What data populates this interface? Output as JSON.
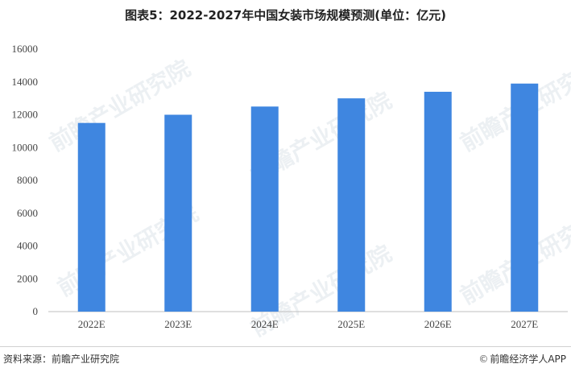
{
  "title": "图表5：2022-2027年中国女装市场规模预测(单位：亿元)",
  "source": "资料来源：前瞻产业研究院",
  "brand": "前瞻经济学人APP",
  "watermark_text": "前瞻产业研究院",
  "colors": {
    "bar": "#3f86e0",
    "axis": "#bfbfbf"
  },
  "chart_data": {
    "type": "bar",
    "title": "图表5：2022-2027年中国女装市场规模预测(单位：亿元)",
    "xlabel": "",
    "ylabel": "",
    "categories": [
      "2022E",
      "2023E",
      "2024E",
      "2025E",
      "2026E",
      "2027E"
    ],
    "values": [
      11500,
      12000,
      12500,
      13000,
      13400,
      13900
    ],
    "ylim": [
      0,
      16000
    ],
    "yticks": [
      0,
      2000,
      4000,
      6000,
      8000,
      10000,
      12000,
      14000,
      16000
    ],
    "grid": false,
    "legend": "none"
  }
}
